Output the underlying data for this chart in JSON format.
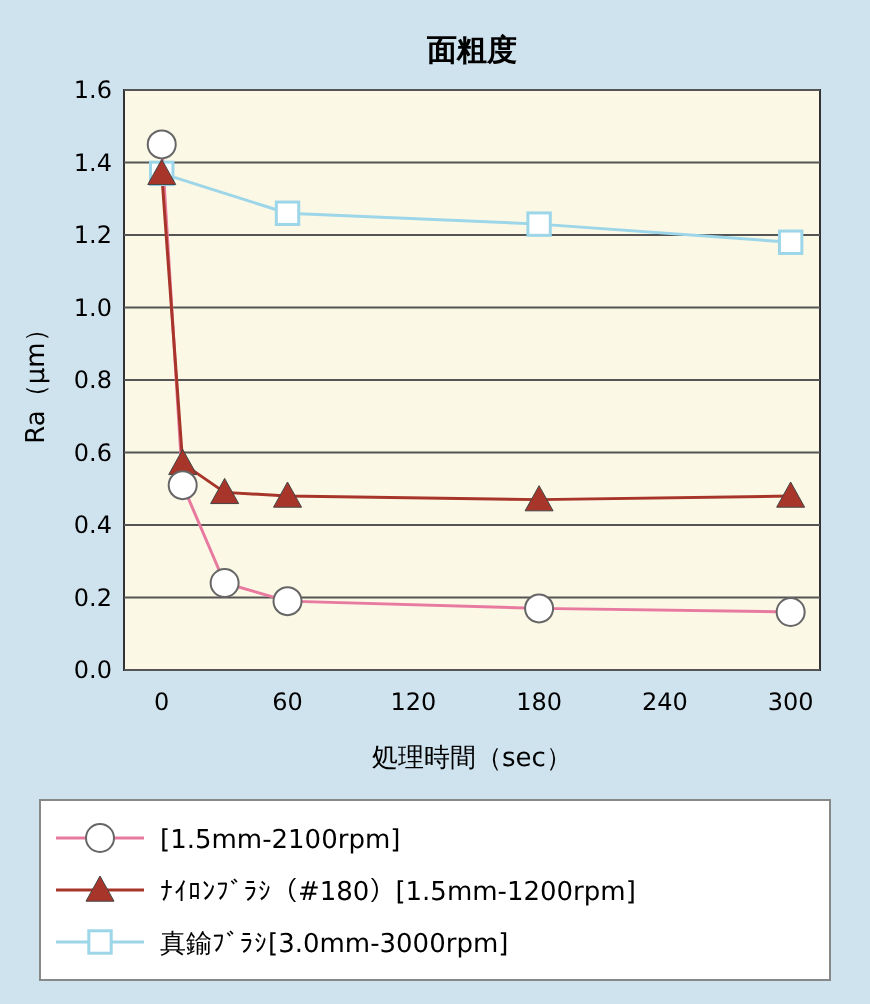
{
  "chart_data": {
    "type": "line",
    "title": "面粗度",
    "xlabel": "処理時間（sec）",
    "ylabel": "Ra（μm）",
    "xlim": [
      -18,
      314
    ],
    "xticks": [
      0,
      60,
      120,
      180,
      240,
      300
    ],
    "ylim": [
      0,
      1.6
    ],
    "yticks": [
      {
        "value": 0,
        "label": "0.0"
      },
      {
        "value": 0.2,
        "label": "0.2"
      },
      {
        "value": 0.4,
        "label": "0.4"
      },
      {
        "value": 0.6,
        "label": "0.6"
      },
      {
        "value": 0.8,
        "label": "0.8"
      },
      {
        "value": 1.0,
        "label": "1.0"
      },
      {
        "value": 1.2,
        "label": "1.2"
      },
      {
        "value": 1.4,
        "label": "1.4"
      },
      {
        "value": 1.6,
        "label": "1.6"
      }
    ],
    "grid": "y",
    "legend": "bottom",
    "series": [
      {
        "name": "[1.5mm-2100rpm]",
        "color": "#e87aa0",
        "marker": "circle",
        "x": [
          0,
          10,
          30,
          60,
          180,
          300
        ],
        "values": [
          1.45,
          0.51,
          0.24,
          0.19,
          0.17,
          0.16
        ]
      },
      {
        "name": "ﾅｲﾛﾝﾌﾞﾗｼ（#180）[1.5mm-1200rpm]",
        "color": "#a8352a",
        "marker": "triangle",
        "x": [
          0,
          10,
          30,
          60,
          180,
          300
        ],
        "values": [
          1.37,
          0.57,
          0.49,
          0.48,
          0.47,
          0.48
        ]
      },
      {
        "name": "真鍮ﾌﾞﾗｼ[3.0mm-3000rpm]",
        "color": "#9cd6e8",
        "marker": "square",
        "x": [
          0,
          60,
          180,
          300
        ],
        "values": [
          1.37,
          1.26,
          1.23,
          1.18
        ]
      }
    ]
  }
}
